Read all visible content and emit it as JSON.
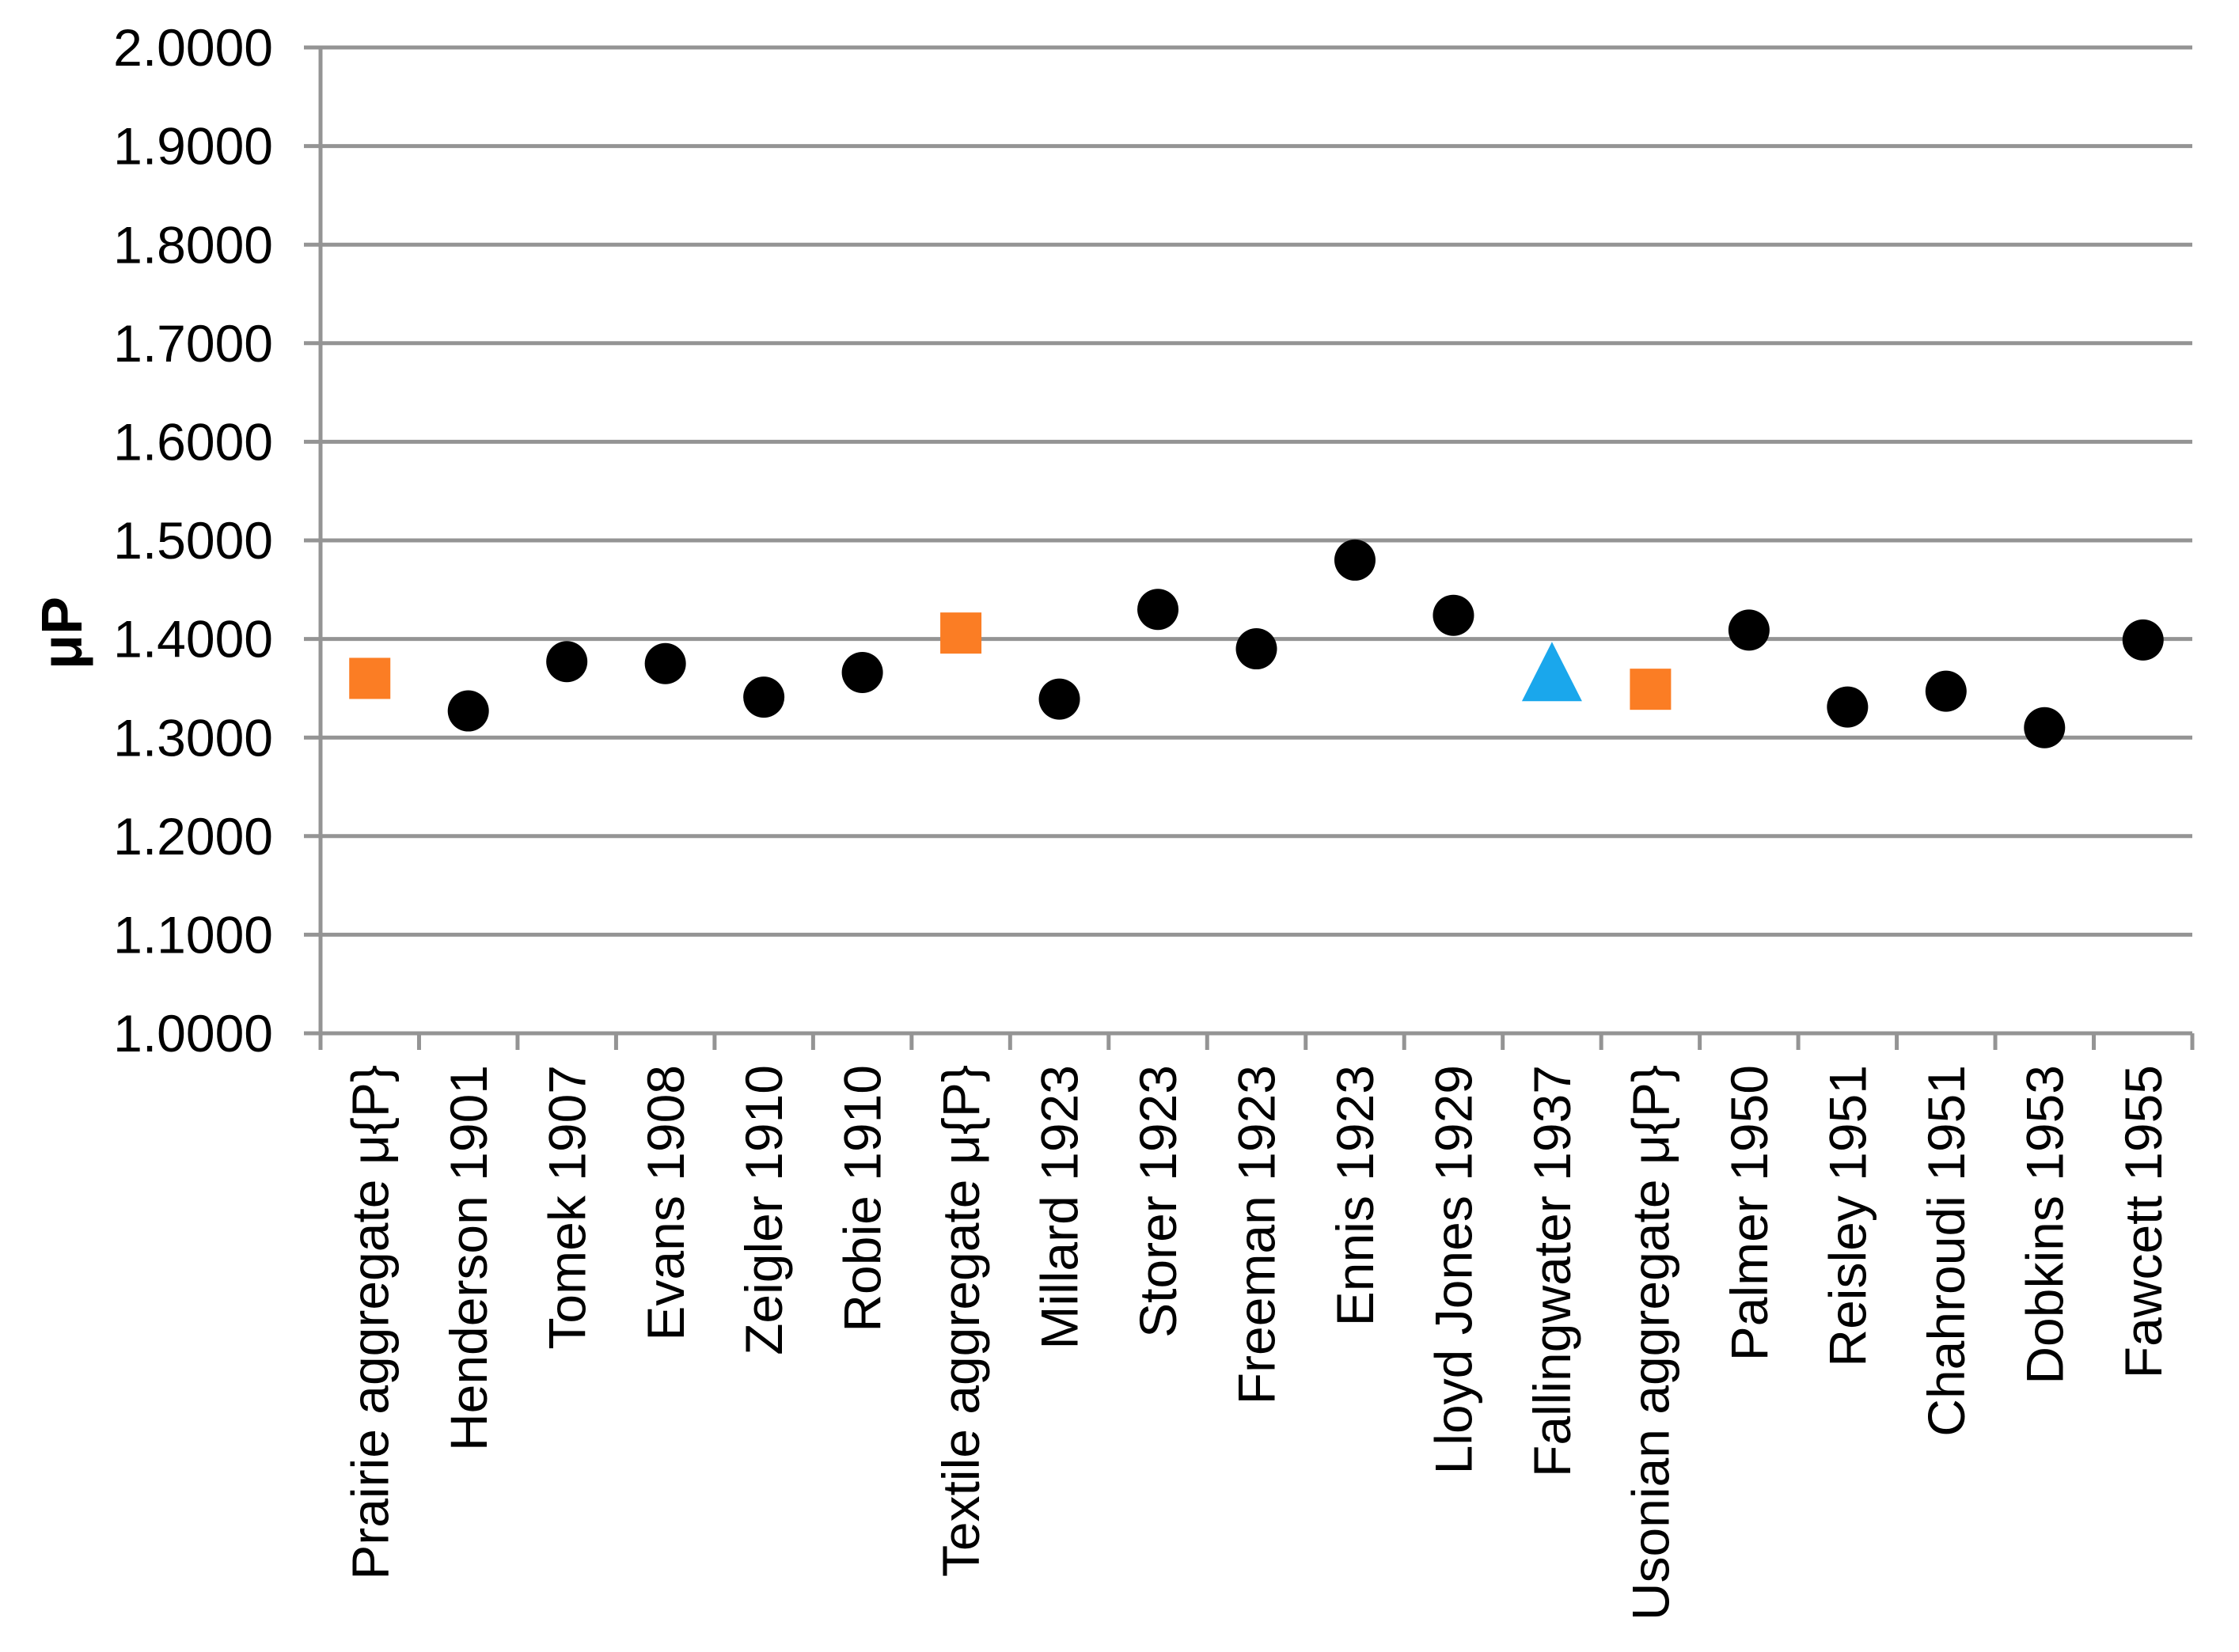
{
  "chart_data": {
    "type": "scatter",
    "title": "",
    "xlabel": "",
    "ylabel": "μP",
    "ylim": [
      1.0,
      2.0
    ],
    "ytick_step": 0.1,
    "ytick_labels": [
      "1.0000",
      "1.1000",
      "1.2000",
      "1.3000",
      "1.4000",
      "1.5000",
      "1.6000",
      "1.7000",
      "1.8000",
      "1.9000",
      "2.0000"
    ],
    "grid": true,
    "legend_position": "none",
    "categories": [
      "Prairie aggregate μ{P}",
      "Henderson 1901",
      "Tomek 1907",
      "Evans 1908",
      "Zeigler 1910",
      "Robie 1910",
      "Textile aggregate μ{P}",
      "Millard 1923",
      "Storer 1923",
      "Freeman 1923",
      "Ennis 1923",
      "Lloyd Jones 1929",
      "Fallingwater 1937",
      "Usonian aggregate μ{P}",
      "Palmer 1950",
      "Reisley 1951",
      "Chahroudi 1951",
      "Dobkins 1953",
      "Fawcett 1955"
    ],
    "points": [
      {
        "label": "Prairie aggregate μ{P}",
        "value": 1.36,
        "series": "aggregate"
      },
      {
        "label": "Henderson 1901",
        "value": 1.327,
        "series": "house"
      },
      {
        "label": "Tomek 1907",
        "value": 1.377,
        "series": "house"
      },
      {
        "label": "Evans 1908",
        "value": 1.375,
        "series": "house"
      },
      {
        "label": "Zeigler 1910",
        "value": 1.341,
        "series": "house"
      },
      {
        "label": "Robie 1910",
        "value": 1.366,
        "series": "house"
      },
      {
        "label": "Textile aggregate μ{P}",
        "value": 1.406,
        "series": "aggregate"
      },
      {
        "label": "Millard 1923",
        "value": 1.339,
        "series": "house"
      },
      {
        "label": "Storer 1923",
        "value": 1.43,
        "series": "house"
      },
      {
        "label": "Freeman 1923",
        "value": 1.39,
        "series": "house"
      },
      {
        "label": "Ennis 1923",
        "value": 1.48,
        "series": "house"
      },
      {
        "label": "Lloyd Jones 1929",
        "value": 1.424,
        "series": "house"
      },
      {
        "label": "Fallingwater 1937",
        "value": 1.365,
        "series": "fallingwater"
      },
      {
        "label": "Usonian aggregate μ{P}",
        "value": 1.349,
        "series": "aggregate"
      },
      {
        "label": "Palmer 1950",
        "value": 1.409,
        "series": "house"
      },
      {
        "label": "Reisley 1951",
        "value": 1.331,
        "series": "house"
      },
      {
        "label": "Chahroudi 1951",
        "value": 1.347,
        "series": "house"
      },
      {
        "label": "Dobkins 1953",
        "value": 1.31,
        "series": "house"
      },
      {
        "label": "Fawcett 1955",
        "value": 1.399,
        "series": "house"
      }
    ],
    "series_styles": {
      "house": {
        "marker": "circle",
        "color": "#000000"
      },
      "aggregate": {
        "marker": "square",
        "color": "#FB7D24"
      },
      "fallingwater": {
        "marker": "triangle",
        "color": "#1AA7EC"
      }
    },
    "colors": {
      "gridline": "#949494",
      "axis": "#949494",
      "text": "#000000",
      "background": "#FFFFFF"
    }
  }
}
